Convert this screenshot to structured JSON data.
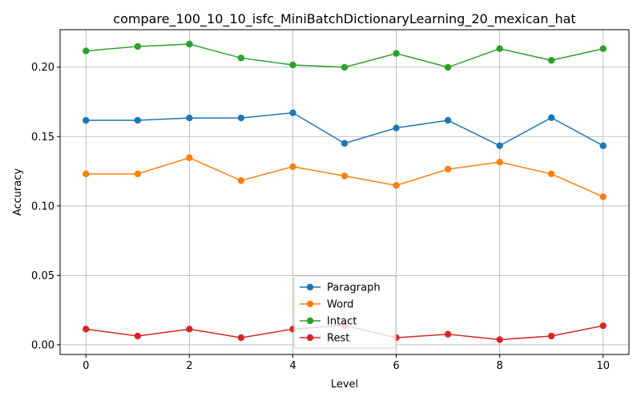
{
  "chart_data": {
    "type": "line",
    "title": "compare_100_10_10_isfc_MiniBatchDictionaryLearning_20_mexican_hat",
    "xlabel": "Level",
    "ylabel": "Accuracy",
    "x": [
      0,
      1,
      2,
      3,
      4,
      5,
      6,
      7,
      8,
      9,
      10
    ],
    "xlim": [
      -0.5,
      10.5
    ],
    "ylim": [
      -0.007,
      0.227
    ],
    "xticks": [
      0,
      2,
      4,
      6,
      8,
      10
    ],
    "xtick_labels": [
      "0",
      "2",
      "4",
      "6",
      "8",
      "10"
    ],
    "yticks": [
      0.0,
      0.05,
      0.1,
      0.15,
      0.2
    ],
    "ytick_labels": [
      "0.00",
      "0.05",
      "0.10",
      "0.15",
      "0.20"
    ],
    "grid": true,
    "legend_position": "bottom-center",
    "series": [
      {
        "name": "Paragraph",
        "color": "#1f77b4",
        "values": [
          0.1617,
          0.1617,
          0.1634,
          0.1634,
          0.1671,
          0.1451,
          0.1562,
          0.1617,
          0.1434,
          0.1636,
          0.1434
        ]
      },
      {
        "name": "Word",
        "color": "#ff7f0e",
        "values": [
          0.1231,
          0.1231,
          0.1347,
          0.1183,
          0.1283,
          0.1216,
          0.1148,
          0.1265,
          0.1316,
          0.1231,
          0.1066
        ]
      },
      {
        "name": "Intact",
        "color": "#2ca02c",
        "values": [
          0.2117,
          0.2149,
          0.2166,
          0.2066,
          0.2016,
          0.1999,
          0.2099,
          0.1999,
          0.2133,
          0.2049,
          0.2133
        ]
      },
      {
        "name": "Rest",
        "color": "#d62728",
        "values": [
          0.0113,
          0.0063,
          0.0113,
          0.0051,
          0.0113,
          0.014,
          0.0051,
          0.0076,
          0.0037,
          0.0063,
          0.0137
        ]
      }
    ]
  }
}
